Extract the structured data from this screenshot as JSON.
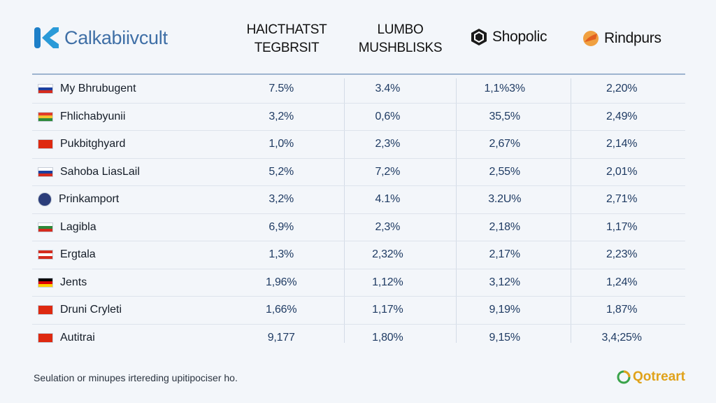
{
  "brand": {
    "name": "Calkabiivcult"
  },
  "columns": [
    {
      "line1": "HAICTHATST",
      "line2": "TEGBRSIT"
    },
    {
      "line1": "LUMBO",
      "line2": "MUSHBLISKS"
    },
    {
      "label": "Shopolic",
      "icon": "hexagon-logo-icon"
    },
    {
      "label": "Rindpurs",
      "icon": "orange-swirl-logo-icon"
    }
  ],
  "colors": {
    "brand": "#3f6fa6",
    "accent_orange": "#e8862a",
    "value_text": "#1f3b63"
  },
  "chart_data": {
    "type": "table",
    "rows": [
      {
        "name": "My Bhrubugent",
        "flag": [
          "#ffffff",
          "#1c3f9f",
          "#d52b1e"
        ],
        "values": [
          "7.5%",
          "3.4%",
          "1,1%3%",
          "2,20%"
        ]
      },
      {
        "name": "Fhlichabyunii",
        "flag": [
          "#e23b2a",
          "#f2c230",
          "#2e8a3b"
        ],
        "values": [
          "3,2%",
          "0,6%",
          "35,5%",
          "2,49%"
        ]
      },
      {
        "name": "Pukbitghyard",
        "flag": [
          "#de2910",
          "#de2910",
          "#de2910"
        ],
        "values": [
          "1,0%",
          "2,3%",
          "2,67%",
          "2,14%"
        ]
      },
      {
        "name": "Sahoba LiasLail",
        "flag": [
          "#ffffff",
          "#1c3f9f",
          "#d52b1e"
        ],
        "values": [
          "5,2%",
          "7,2%",
          "2,55%",
          "2,01%"
        ]
      },
      {
        "name": "Prinkamport",
        "flag": [
          "#2b3d7a",
          "#2b3d7a",
          "#2b3d7a"
        ],
        "values": [
          "3,2%",
          "4.1%",
          "3.2U%",
          "2,71%"
        ]
      },
      {
        "name": "Lagibla",
        "flag": [
          "#ffffff",
          "#2e8a3b",
          "#d52b1e"
        ],
        "values": [
          "6,9%",
          "2,3%",
          "2,18%",
          "1,17%"
        ]
      },
      {
        "name": "Ergtala",
        "flag": [
          "#d52b1e",
          "#ffffff",
          "#d52b1e"
        ],
        "values": [
          "1,3%",
          "2,32%",
          "2,17%",
          "2,23%"
        ]
      },
      {
        "name": "Jents",
        "flag": [
          "#000000",
          "#dd0000",
          "#ffce00"
        ],
        "values": [
          "1,96%",
          "1,12%",
          "3,12%",
          "1,24%"
        ]
      },
      {
        "name": "Druni Cryleti",
        "flag": [
          "#de2910",
          "#de2910",
          "#de2910"
        ],
        "values": [
          "1,66%",
          "1,17%",
          "9,19%",
          "1,87%"
        ]
      },
      {
        "name": "Autitrai",
        "flag": [
          "#de2910",
          "#de2910",
          "#de2910"
        ],
        "values": [
          "9,177",
          "1,80%",
          "9,15%",
          "3,4;25%"
        ]
      }
    ]
  },
  "footnote": "Seulation or minupes irtereding upitipociser ho.",
  "footer_brand": {
    "name": "Qotreart"
  }
}
